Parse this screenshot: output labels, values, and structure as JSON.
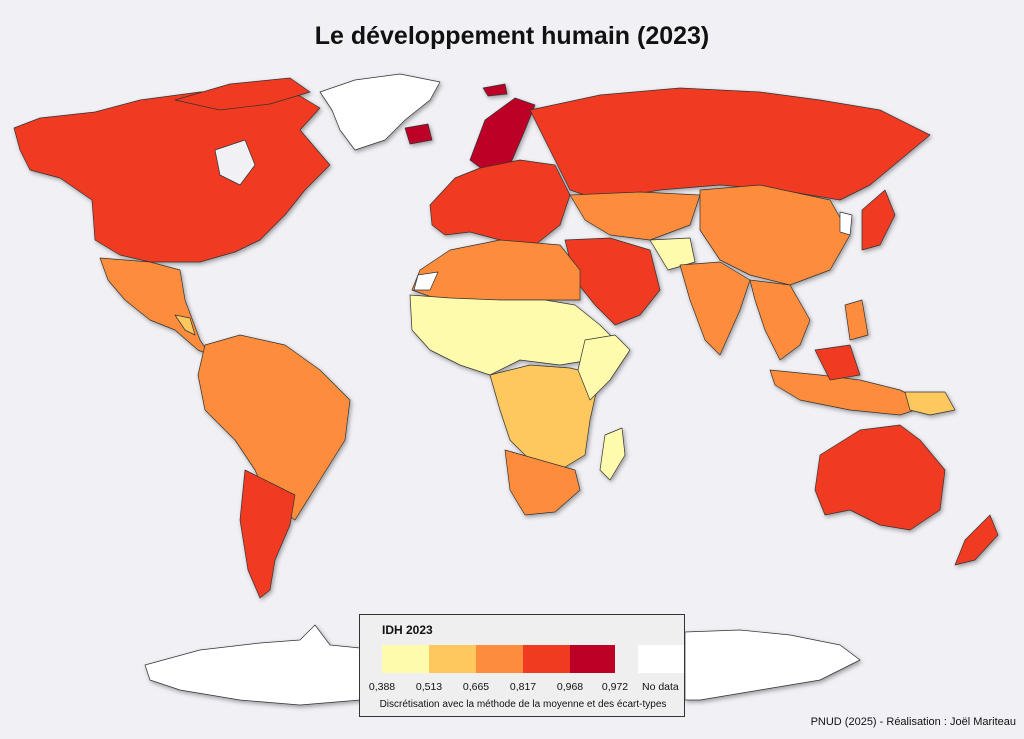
{
  "title": "Le développement humain (2023)",
  "legend": {
    "title": "IDH 2023",
    "classes": [
      {
        "from": "0,388",
        "to": "0,513",
        "color": "#fffbad"
      },
      {
        "from": "0,513",
        "to": "0,665",
        "color": "#fec85e"
      },
      {
        "from": "0,665",
        "to": "0,817",
        "color": "#fd8d3c"
      },
      {
        "from": "0,817",
        "to": "0,968",
        "color": "#f03b20"
      },
      {
        "from": "0,968",
        "to": "0,972",
        "color": "#bd0026"
      }
    ],
    "breaks": [
      "0,388",
      "0,513",
      "0,665",
      "0,817",
      "0,968",
      "0,972"
    ],
    "nodata_label": "No data",
    "nodata_color": "#ffffff",
    "method_note": "Discrétisation avec la méthode de la moyenne et des écart-types"
  },
  "source": "PNUD (2025) - Réalisation : Joël Mariteau"
}
